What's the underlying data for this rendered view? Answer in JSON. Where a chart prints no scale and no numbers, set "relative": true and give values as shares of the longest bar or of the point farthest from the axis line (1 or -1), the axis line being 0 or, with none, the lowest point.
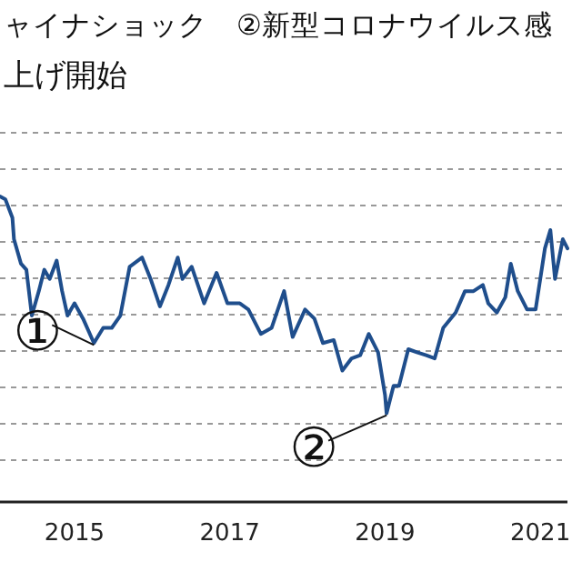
{
  "chart_data": {
    "type": "line",
    "title": "ャイナショック　②新型コロナウイルス感",
    "subtitle": "上げ開始",
    "relative": true,
    "grid": "y",
    "xlim": [
      2014.04,
      2021.35
    ],
    "xticks": [
      2015,
      2017,
      2019,
      2021
    ],
    "x": [
      2014.04,
      2014.11,
      2014.2,
      2014.22,
      2014.31,
      2014.38,
      2014.45,
      2014.54,
      2014.61,
      2014.68,
      2014.77,
      2014.84,
      2014.91,
      2015.0,
      2015.11,
      2015.25,
      2015.37,
      2015.48,
      2015.59,
      2015.71,
      2015.87,
      2015.98,
      2016.1,
      2016.21,
      2016.33,
      2016.39,
      2016.51,
      2016.67,
      2016.83,
      2016.97,
      2017.13,
      2017.24,
      2017.4,
      2017.54,
      2017.7,
      2017.81,
      2017.97,
      2018.09,
      2018.2,
      2018.34,
      2018.45,
      2018.57,
      2018.68,
      2018.79,
      2018.91,
      2019.0,
      2019.02,
      2019.11,
      2019.18,
      2019.3,
      2019.41,
      2019.53,
      2019.64,
      2019.75,
      2019.91,
      2020.03,
      2020.14,
      2020.26,
      2020.33,
      2020.44,
      2020.55,
      2020.62,
      2020.71,
      2020.83,
      2020.94,
      2021.06,
      2021.13,
      2021.19,
      2021.29,
      2021.35
    ],
    "series": [
      {
        "color": "#1f4e8c",
        "values": [
          1.0,
          0.99,
          0.93,
          0.86,
          0.78,
          0.76,
          0.61,
          0.69,
          0.76,
          0.73,
          0.79,
          0.69,
          0.61,
          0.65,
          0.6,
          0.52,
          0.57,
          0.57,
          0.61,
          0.77,
          0.8,
          0.73,
          0.64,
          0.71,
          0.8,
          0.73,
          0.77,
          0.65,
          0.75,
          0.65,
          0.65,
          0.63,
          0.55,
          0.57,
          0.69,
          0.54,
          0.63,
          0.6,
          0.52,
          0.53,
          0.43,
          0.47,
          0.48,
          0.55,
          0.49,
          0.35,
          0.29,
          0.38,
          0.38,
          0.5,
          0.49,
          0.48,
          0.47,
          0.57,
          0.62,
          0.69,
          0.69,
          0.71,
          0.65,
          0.62,
          0.67,
          0.78,
          0.69,
          0.63,
          0.63,
          0.83,
          0.89,
          0.73,
          0.86,
          0.83
        ]
      }
    ],
    "annotations": [
      {
        "text": "①",
        "x": 2015.25,
        "y": 0.52
      },
      {
        "text": "②",
        "x": 2019.02,
        "y": 0.29
      }
    ]
  }
}
